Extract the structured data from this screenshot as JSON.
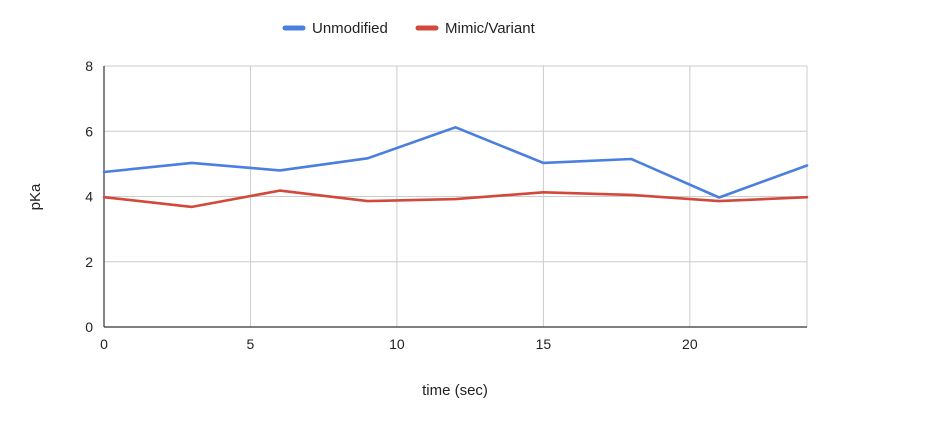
{
  "chart_data": {
    "type": "line",
    "title": "",
    "xlabel": "time (sec)",
    "ylabel": "pKa",
    "xlim": [
      0,
      24
    ],
    "ylim": [
      0,
      8
    ],
    "xticks": [
      0,
      5,
      10,
      15,
      20
    ],
    "yticks": [
      0,
      2,
      4,
      6,
      8
    ],
    "grid": true,
    "legend_position": "top-center",
    "series": [
      {
        "name": "Unmodified",
        "color": "#4a7fe0",
        "x": [
          0,
          3,
          6,
          9,
          12,
          15,
          18,
          21,
          24
        ],
        "values": [
          4.75,
          5.03,
          4.8,
          5.17,
          6.12,
          5.03,
          5.15,
          3.97,
          4.95
        ]
      },
      {
        "name": "Mimic/Variant",
        "color": "#d2483b",
        "x": [
          0,
          3,
          6,
          9,
          12,
          15,
          18,
          21,
          24
        ],
        "values": [
          3.98,
          3.68,
          4.18,
          3.86,
          3.92,
          4.13,
          4.05,
          3.86,
          3.98
        ]
      }
    ]
  }
}
